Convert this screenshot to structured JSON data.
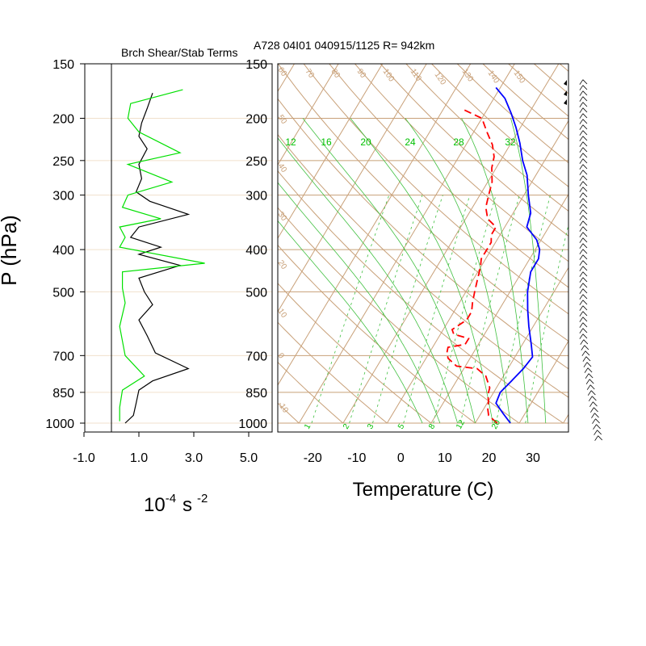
{
  "title": "A728 04I01 040915/1125 R= 942km",
  "colors": {
    "temperature": "#0000ff",
    "dewpoint": "#ff0000",
    "shear_term": "#000000",
    "stab_term": "#00e000",
    "isotherm": "#c8a078",
    "dry_adiabat": "#c8a078",
    "mixing_ratio": "#40c040",
    "moist_adiabat": "#40c040",
    "wind_barb": "#000000"
  },
  "chart_data": [
    {
      "type": "line",
      "title": "Brch Shear/Stab Terms",
      "ylabel": "P (hPa)",
      "xlabel_base": "10",
      "xlabel_exp": "-4",
      "xlabel_unit": "s",
      "xlabel_unit_exp": "-2",
      "x_ticks": [
        "-1.0",
        "1.0",
        "3.0",
        "5.0"
      ],
      "xlim": [
        -1.0,
        5.0
      ],
      "y_ticks": [
        "150",
        "200",
        "250",
        "300",
        "400",
        "500",
        "700",
        "850",
        "1000"
      ],
      "ylim": [
        1000,
        150
      ],
      "y_scale": "log",
      "series": [
        {
          "points": [
            [
              1.5,
              175
            ],
            [
              1.3,
              190
            ],
            [
              1.1,
              205
            ],
            [
              1.0,
              220
            ],
            [
              1.3,
              235
            ],
            [
              1.0,
              255
            ],
            [
              1.1,
              275
            ],
            [
              0.9,
              295
            ],
            [
              1.4,
              310
            ],
            [
              2.8,
              332
            ],
            [
              1.0,
              355
            ],
            [
              0.7,
              375
            ],
            [
              1.8,
              395
            ],
            [
              1.0,
              410
            ],
            [
              2.5,
              435
            ],
            [
              1.0,
              465
            ],
            [
              1.2,
              500
            ],
            [
              1.5,
              535
            ],
            [
              1.0,
              580
            ],
            [
              1.3,
              630
            ],
            [
              1.6,
              690
            ],
            [
              2.8,
              750
            ],
            [
              1.5,
              800
            ],
            [
              1.0,
              840
            ],
            [
              0.9,
              900
            ],
            [
              0.8,
              960
            ],
            [
              0.5,
              1000
            ]
          ]
        },
        {
          "points": [
            [
              2.6,
              172
            ],
            [
              0.7,
              185
            ],
            [
              0.6,
              200
            ],
            [
              1.0,
              215
            ],
            [
              2.5,
              240
            ],
            [
              0.6,
              255
            ],
            [
              2.2,
              280
            ],
            [
              0.6,
              300
            ],
            [
              0.4,
              320
            ],
            [
              1.8,
              340
            ],
            [
              0.3,
              355
            ],
            [
              0.5,
              375
            ],
            [
              0.3,
              395
            ],
            [
              3.4,
              430
            ],
            [
              0.4,
              450
            ],
            [
              0.4,
              490
            ],
            [
              0.5,
              530
            ],
            [
              0.3,
              600
            ],
            [
              0.5,
              700
            ],
            [
              1.2,
              780
            ],
            [
              0.4,
              840
            ],
            [
              0.3,
              920
            ],
            [
              0.3,
              990
            ]
          ]
        }
      ]
    },
    {
      "type": "line",
      "xlabel": "Temperature (C)",
      "x_ticks": [
        "-20",
        "-10",
        "0",
        "10",
        "20",
        "30"
      ],
      "xlim": [
        -25,
        41
      ],
      "y_ticks": [
        "150",
        "200",
        "250",
        "300",
        "400",
        "500",
        "700",
        "850",
        "1000"
      ],
      "ylim": [
        1000,
        150
      ],
      "y_scale": "log",
      "skew": "skew-T log-p",
      "isotherms_c": [
        -130,
        -120,
        -110,
        -100,
        -90,
        -80,
        -70,
        -60,
        -50,
        -40,
        -30,
        -20,
        -10,
        0,
        10,
        20,
        30,
        40
      ],
      "dry_adiabat_labels": [
        "-30",
        "-20",
        "-10",
        "0",
        "10",
        "20",
        "30",
        "40",
        "50",
        "60",
        "70",
        "80",
        "90",
        "100",
        "110",
        "120",
        "130",
        "140",
        "150"
      ],
      "mixing_ratio_labels": [
        "1",
        "2",
        "3",
        "5",
        "8",
        "12",
        "20"
      ],
      "moist_adiabat_labels": [
        "12",
        "16",
        "20",
        "24",
        "28",
        "32"
      ],
      "series": [
        {
          "name": "temperature",
          "points": [
            [
              28.0,
              1000
            ],
            [
              25.0,
              950
            ],
            [
              22.0,
              900
            ],
            [
              21.5,
              850
            ],
            [
              22.5,
              800
            ],
            [
              23.5,
              750
            ],
            [
              24.0,
              705
            ],
            [
              22.0,
              660
            ],
            [
              19.0,
              600
            ],
            [
              16.5,
              550
            ],
            [
              14.0,
              500
            ],
            [
              12.0,
              450
            ],
            [
              12.0,
              420
            ],
            [
              11.0,
              400
            ],
            [
              9.0,
              380
            ],
            [
              5.0,
              355
            ],
            [
              4.0,
              330
            ],
            [
              1.0,
              300
            ],
            [
              -2.0,
              270
            ],
            [
              -5.0,
              250
            ],
            [
              -8.0,
              228
            ],
            [
              -11.0,
              210
            ],
            [
              -14.0,
              195
            ],
            [
              -17.5,
              180
            ],
            [
              -21.0,
              170
            ]
          ]
        },
        {
          "name": "dewpoint",
          "points": [
            [
              25.0,
              1000
            ],
            [
              23.5,
              980
            ],
            [
              22.0,
              960
            ],
            [
              21.0,
              930
            ],
            [
              20.0,
              890
            ],
            [
              19.0,
              860
            ],
            [
              18.5,
              830
            ],
            [
              16.0,
              780
            ],
            [
              13.0,
              750
            ],
            [
              8.0,
              740
            ],
            [
              5.0,
              710
            ],
            [
              4.0,
              690
            ],
            [
              3.5,
              670
            ],
            [
              7.0,
              660
            ],
            [
              7.0,
              640
            ],
            [
              3.0,
              625
            ],
            [
              2.0,
              610
            ],
            [
              4.0,
              580
            ],
            [
              4.0,
              555
            ],
            [
              3.0,
              530
            ],
            [
              2.0,
              500
            ],
            [
              1.0,
              470
            ],
            [
              0.0,
              440
            ],
            [
              -1.0,
              420
            ],
            [
              -1.0,
              400
            ],
            [
              -1.0,
              385
            ],
            [
              -2.0,
              370
            ],
            [
              -2.0,
              355
            ],
            [
              -5.0,
              340
            ],
            [
              -7.0,
              320
            ],
            [
              -8.0,
              300
            ],
            [
              -9.0,
              280
            ],
            [
              -11.0,
              260
            ],
            [
              -12.0,
              245
            ],
            [
              -14.0,
              230
            ],
            [
              -17.0,
              215
            ],
            [
              -20.0,
              200
            ],
            [
              -26.0,
              190
            ]
          ]
        }
      ]
    }
  ]
}
